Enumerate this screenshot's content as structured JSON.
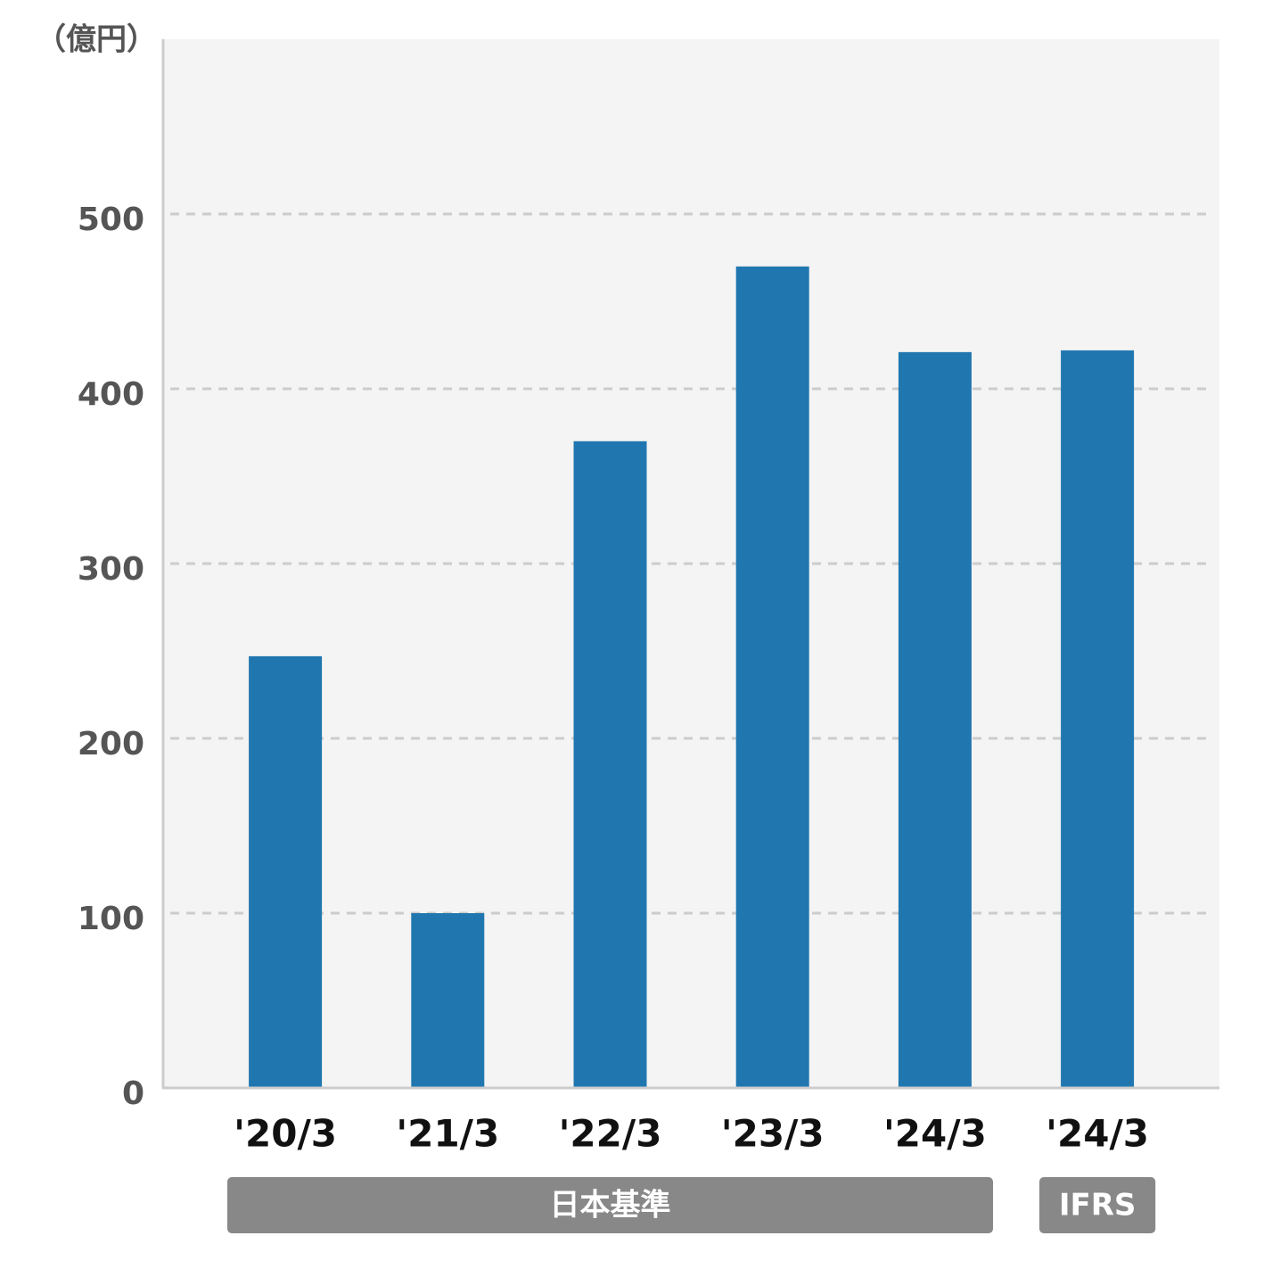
{
  "chart_data": {
    "type": "bar",
    "y_axis_label": "（億円）",
    "categories": [
      "'20/3",
      "'21/3",
      "'22/3",
      "'23/3",
      "'24/3",
      "'24/3"
    ],
    "category_groups": [
      "日本基準",
      "日本基準",
      "日本基準",
      "日本基準",
      "日本基準",
      "IFRS"
    ],
    "values": [
      247,
      100,
      370,
      470,
      421,
      422
    ],
    "color": "#2077b0",
    "ylim": [
      0,
      600
    ],
    "yticks": [
      0,
      100,
      200,
      300,
      400,
      500
    ],
    "grid": true
  }
}
